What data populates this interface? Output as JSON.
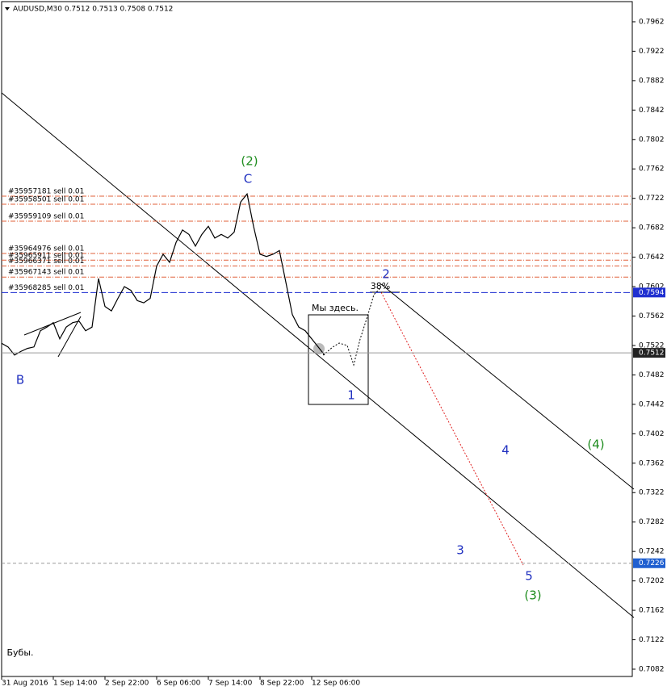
{
  "chart_data": {
    "type": "line",
    "title": "AUDUSD,M30  0.7512 0.7513 0.7508 0.7512",
    "categories": [
      "31 Aug 2016",
      null,
      null,
      null,
      null,
      null,
      null,
      null,
      "1 Sep 14:00",
      null,
      null,
      null,
      null,
      null,
      null,
      null,
      "2 Sep 22:00",
      null,
      null,
      null,
      null,
      null,
      null,
      null,
      "6 Sep 06:00",
      null,
      null,
      null,
      null,
      null,
      null,
      null,
      "7 Sep 14:00",
      null,
      null,
      null,
      null,
      null,
      null,
      null,
      "8 Sep 22:00",
      null,
      null,
      null,
      null,
      null,
      null,
      null,
      "12 Sep 06:00",
      null,
      null
    ],
    "series": [
      {
        "name": "AUDUSD",
        "color": "#000000",
        "values": [
          0.7525,
          0.752,
          0.7509,
          0.7514,
          0.7518,
          0.752,
          0.7542,
          0.7547,
          0.7553,
          0.7531,
          0.7547,
          0.7553,
          0.7555,
          0.7542,
          0.7547,
          0.7613,
          0.7575,
          0.7569,
          0.7586,
          0.7602,
          0.7597,
          0.7583,
          0.758,
          0.7586,
          0.763,
          0.7646,
          0.7635,
          0.7662,
          0.7679,
          0.7673,
          0.7657,
          0.7673,
          0.7684,
          0.7668,
          0.7673,
          0.7668,
          0.7676,
          0.7717,
          0.7728,
          0.7684,
          0.7646,
          0.7643,
          0.7646,
          0.7651,
          0.7608,
          0.7564,
          0.7547,
          0.7542,
          0.7531,
          0.752,
          0.7509
        ]
      }
    ],
    "ylim": [
      0.70721,
      0.79894
    ],
    "yticks": [
      0.7082,
      0.7122,
      0.7162,
      0.7202,
      0.7242,
      0.7282,
      0.7322,
      0.7362,
      0.7402,
      0.7442,
      0.7482,
      0.7522,
      0.7562,
      0.7602,
      0.7642,
      0.7682,
      0.7722,
      0.7762,
      0.7802,
      0.7842,
      0.7882,
      0.7922,
      0.7962
    ],
    "orders": [
      {
        "label": "#35957181 sell 0.01",
        "price": 0.7725,
        "color": "#e0603a"
      },
      {
        "label": "#35958501 sell 0.01",
        "price": 0.7714,
        "color": "#e0603a"
      },
      {
        "label": "#35959109 sell 0.01",
        "price": 0.7691,
        "color": "#e0603a"
      },
      {
        "label": "#35964976 sell 0.01",
        "price": 0.7647,
        "color": "#e0603a"
      },
      {
        "label": "#35965911 sell 0.01",
        "price": 0.7638,
        "color": "#e0603a"
      },
      {
        "label": "#35966371 sell 0.01",
        "price": 0.763,
        "color": "#e0603a"
      },
      {
        "label": "#35967143 sell 0.01",
        "price": 0.7615,
        "color": "#e0603a"
      },
      {
        "label": "#35968285 sell 0.01",
        "price": 0.7594,
        "color": "#1f2fd0"
      }
    ],
    "price_markers": [
      {
        "value": 0.7594,
        "color": "#1f2fd0"
      },
      {
        "value": 0.7512,
        "color": "#222222"
      },
      {
        "value": 0.7226,
        "color": "#1f5fd0"
      }
    ],
    "annotations": [
      {
        "text": "(2)",
        "color": "#1e8c1e"
      },
      {
        "text": "C",
        "color": "#2030c0"
      },
      {
        "text": "B",
        "color": "#2030c0"
      },
      {
        "text": "1",
        "color": "#2030c0"
      },
      {
        "text": "2",
        "color": "#2030c0"
      },
      {
        "text": "3",
        "color": "#2030c0"
      },
      {
        "text": "4",
        "color": "#2030c0"
      },
      {
        "text": "5",
        "color": "#2030c0"
      },
      {
        "text": "(3)",
        "color": "#1e8c1e"
      },
      {
        "text": "(4)",
        "color": "#1e8c1e"
      },
      {
        "text": "38%",
        "color": "#000000"
      },
      {
        "text": "Мы здесь.",
        "color": "#000000"
      },
      {
        "text": "Бубы.",
        "color": "#000000"
      }
    ]
  }
}
